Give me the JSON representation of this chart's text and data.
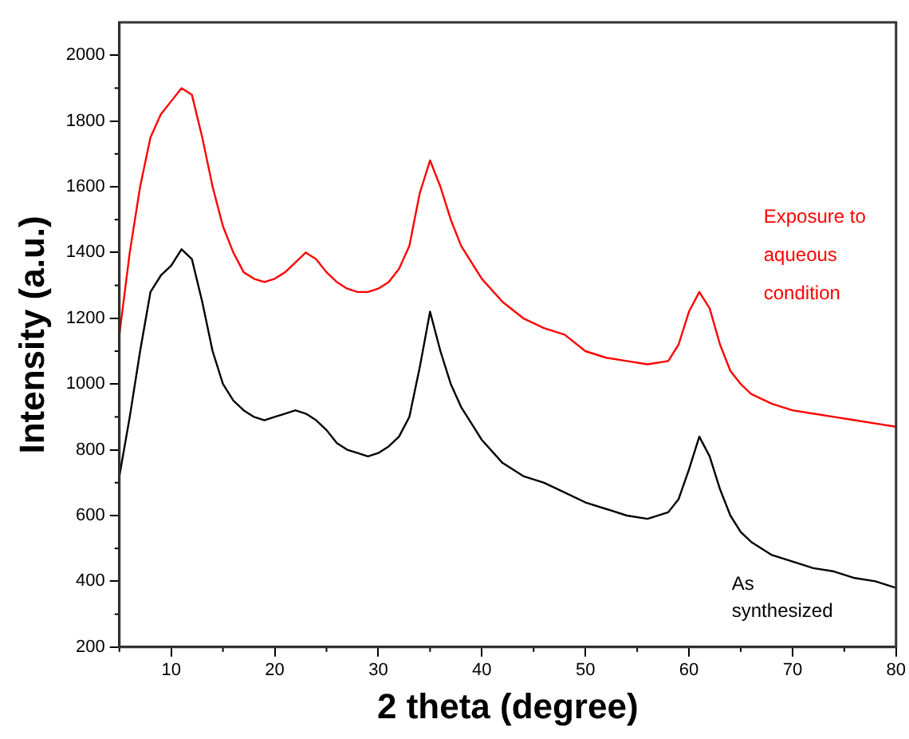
{
  "chart_data": {
    "type": "line",
    "xlabel": "2 theta (degree)",
    "ylabel": "Intensity (a.u.)",
    "x": [
      5,
      6,
      7,
      8,
      9,
      10,
      11,
      12,
      13,
      14,
      15,
      16,
      17,
      18,
      19,
      20,
      21,
      22,
      23,
      24,
      25,
      26,
      27,
      28,
      29,
      30,
      31,
      32,
      33,
      34,
      35,
      36,
      37,
      38,
      39,
      40,
      42,
      44,
      46,
      48,
      50,
      52,
      54,
      56,
      58,
      59,
      60,
      61,
      62,
      63,
      64,
      65,
      66,
      68,
      70,
      72,
      74,
      76,
      78,
      80
    ],
    "xlim": [
      5,
      80
    ],
    "xticks": [
      10,
      20,
      30,
      40,
      50,
      60,
      70,
      80
    ],
    "ylim": [
      200,
      2100
    ],
    "yticks": [
      200,
      400,
      600,
      800,
      1000,
      1200,
      1400,
      1600,
      1800,
      2000
    ],
    "grid": false,
    "legend": false,
    "marker": "none",
    "line_style": "solid",
    "series": [
      {
        "name": "Exposure to aqueous condition",
        "color": "#ff0000",
        "values": [
          1150,
          1400,
          1600,
          1750,
          1820,
          1860,
          1900,
          1880,
          1750,
          1600,
          1480,
          1400,
          1340,
          1320,
          1310,
          1320,
          1340,
          1370,
          1400,
          1380,
          1340,
          1310,
          1290,
          1280,
          1280,
          1290,
          1310,
          1350,
          1420,
          1580,
          1680,
          1600,
          1500,
          1420,
          1370,
          1320,
          1250,
          1200,
          1170,
          1150,
          1100,
          1080,
          1070,
          1060,
          1070,
          1120,
          1220,
          1280,
          1230,
          1120,
          1040,
          1000,
          970,
          940,
          920,
          910,
          900,
          890,
          880,
          870
        ]
      },
      {
        "name": "As synthesized",
        "color": "#000000",
        "values": [
          720,
          900,
          1100,
          1280,
          1330,
          1360,
          1410,
          1380,
          1250,
          1100,
          1000,
          950,
          920,
          900,
          890,
          900,
          910,
          920,
          910,
          890,
          860,
          820,
          800,
          790,
          780,
          790,
          810,
          840,
          900,
          1050,
          1220,
          1100,
          1000,
          930,
          880,
          830,
          760,
          720,
          700,
          670,
          640,
          620,
          600,
          590,
          610,
          650,
          740,
          840,
          780,
          680,
          600,
          550,
          520,
          480,
          460,
          440,
          430,
          410,
          400,
          380
        ]
      }
    ]
  }
}
